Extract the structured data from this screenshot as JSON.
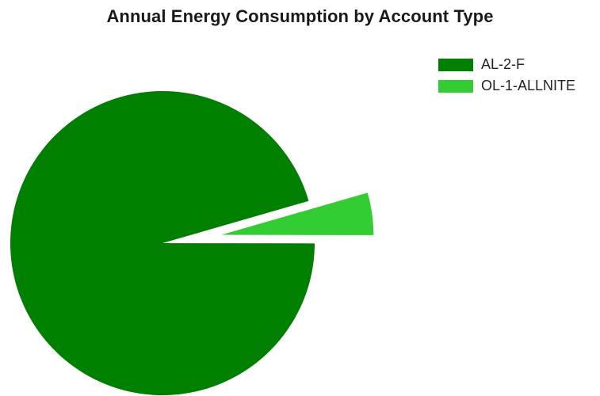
{
  "chart_data": {
    "type": "pie",
    "title": "Annual Energy Consumption by Account Type",
    "categories": [
      "AL-2-F",
      "OL-1-ALLNITE"
    ],
    "values": [
      95.5,
      4.5
    ],
    "unit": "%",
    "exploded": [
      "OL-1-ALLNITE"
    ],
    "colors": [
      "#007f00",
      "#33cc33"
    ],
    "legend_placement": "top-right"
  }
}
